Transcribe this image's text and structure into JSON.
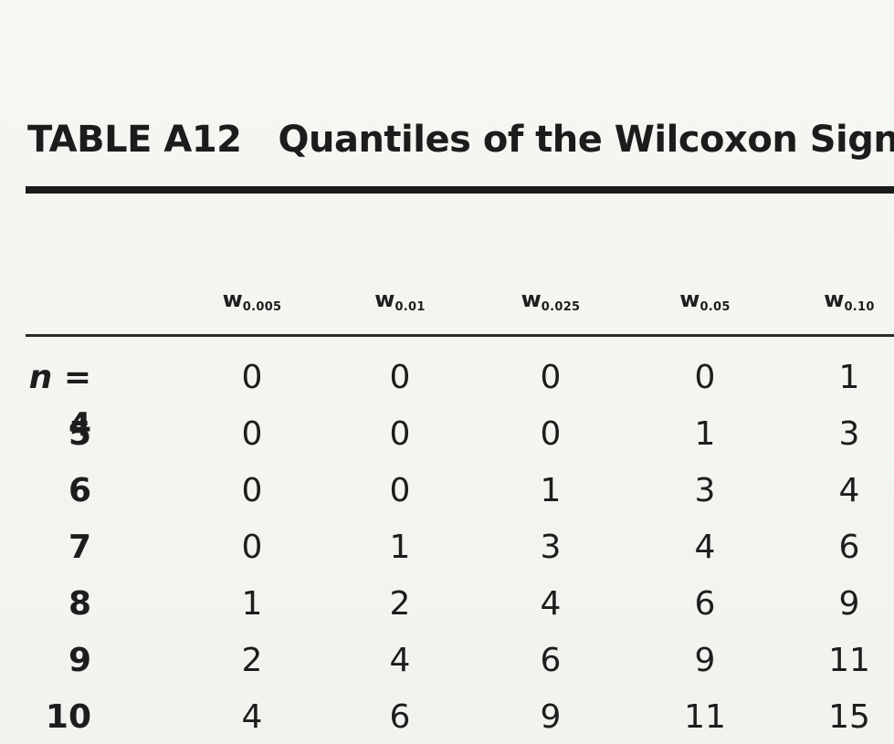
{
  "table": {
    "label": "TABLE A12",
    "title": "Quantiles of the Wilcoxon Signed",
    "columns": [
      {
        "symbol": "w",
        "subscript": "0.005"
      },
      {
        "symbol": "w",
        "subscript": "0.01"
      },
      {
        "symbol": "w",
        "subscript": "0.025"
      },
      {
        "symbol": "w",
        "subscript": "0.05"
      },
      {
        "symbol": "w",
        "subscript": "0.10"
      }
    ],
    "first_row_prefix": "n = ",
    "rows": [
      {
        "n": "4",
        "values": [
          "0",
          "0",
          "0",
          "0",
          "1"
        ]
      },
      {
        "n": "5",
        "values": [
          "0",
          "0",
          "0",
          "1",
          "3"
        ]
      },
      {
        "n": "6",
        "values": [
          "0",
          "0",
          "1",
          "3",
          "4"
        ]
      },
      {
        "n": "7",
        "values": [
          "0",
          "1",
          "3",
          "4",
          "6"
        ]
      },
      {
        "n": "8",
        "values": [
          "1",
          "2",
          "4",
          "6",
          "9"
        ]
      },
      {
        "n": "9",
        "values": [
          "2",
          "4",
          "6",
          "9",
          "11"
        ]
      },
      {
        "n": "10",
        "values": [
          "4",
          "6",
          "9",
          "11",
          "15"
        ]
      }
    ]
  }
}
